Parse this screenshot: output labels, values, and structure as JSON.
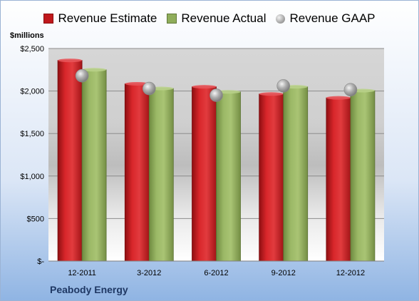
{
  "legend": {
    "estimate": "Revenue Estimate",
    "actual": "Revenue Actual",
    "gaap": "Revenue GAAP"
  },
  "unit_label": "$millions",
  "company": "Peabody Energy",
  "colors": {
    "estimate": "#c0181c",
    "actual": "#8fad5a",
    "gaap": "#a6a6a6",
    "company_text": "#1f3864"
  },
  "chart_data": {
    "type": "bar",
    "categories": [
      "12-2011",
      "3-2012",
      "6-2012",
      "9-2012",
      "12-2012"
    ],
    "series": [
      {
        "name": "Revenue Estimate",
        "values": [
          2360,
          2085,
          2050,
          1965,
          1920
        ]
      },
      {
        "name": "Revenue Actual",
        "values": [
          2250,
          2030,
          1990,
          2050,
          2005
        ]
      },
      {
        "name": "Revenue GAAP",
        "type": "scatter",
        "values": [
          2180,
          2030,
          1950,
          2060,
          2015
        ]
      }
    ],
    "ylabel": "$millions",
    "ylim": [
      0,
      2500
    ],
    "yticks": [
      {
        "value": 0,
        "label": "$-"
      },
      {
        "value": 500,
        "label": "$500"
      },
      {
        "value": 1000,
        "label": "$1,000"
      },
      {
        "value": 1500,
        "label": "$1,500"
      },
      {
        "value": 2000,
        "label": "$2,000"
      },
      {
        "value": 2500,
        "label": "$2,500"
      }
    ],
    "grid": true,
    "legend_position": "top"
  }
}
